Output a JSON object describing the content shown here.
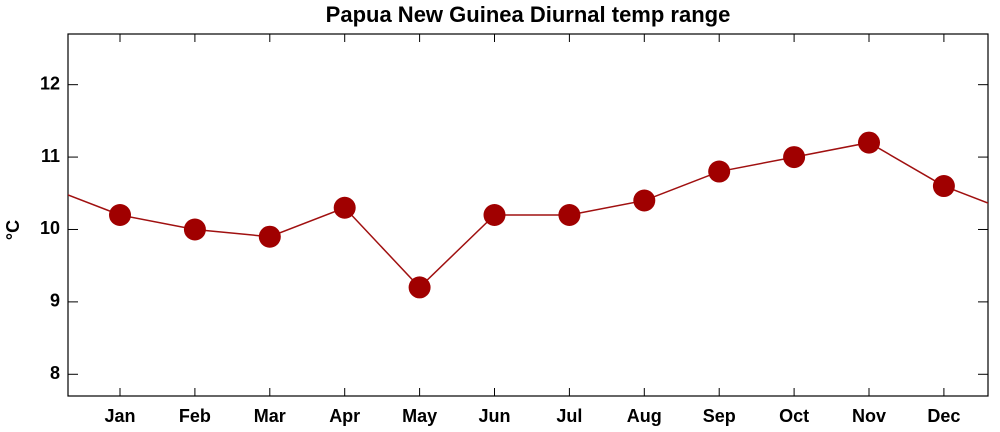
{
  "chart_data": {
    "type": "line",
    "title": "Papua New Guinea Diurnal temp range",
    "ylabel": "°C",
    "categories": [
      "Jan",
      "Feb",
      "Mar",
      "Apr",
      "May",
      "Jun",
      "Jul",
      "Aug",
      "Sep",
      "Oct",
      "Nov",
      "Dec"
    ],
    "values": [
      10.2,
      10.0,
      9.9,
      10.3,
      9.2,
      10.2,
      10.2,
      10.4,
      10.8,
      11.0,
      11.2,
      10.6
    ],
    "color": "#a00000",
    "ylim": [
      7.7,
      12.7
    ],
    "yticks": [
      8,
      9,
      10,
      11,
      12
    ],
    "cyclic": true
  }
}
